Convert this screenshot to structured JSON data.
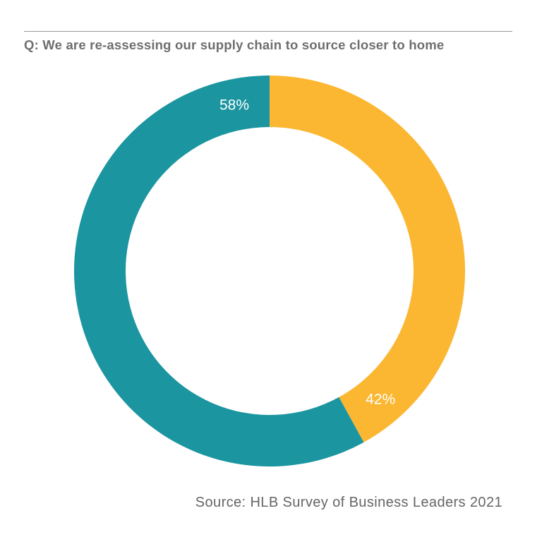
{
  "question": "Q: We are re-assessing our supply chain to source closer to home",
  "source": "Source: HLB Survey of Business Leaders 2021",
  "colors": {
    "teal": "#1b95a0",
    "yellow": "#fbb731"
  },
  "chart_data": {
    "type": "pie",
    "style": "donut",
    "title": "Q: We are re-assessing our supply chain to source closer to home",
    "legend": "none",
    "slices": [
      {
        "value": 42,
        "label": "42%",
        "color": "#fbb731"
      },
      {
        "value": 58,
        "label": "58%",
        "color": "#1b95a0"
      }
    ]
  }
}
